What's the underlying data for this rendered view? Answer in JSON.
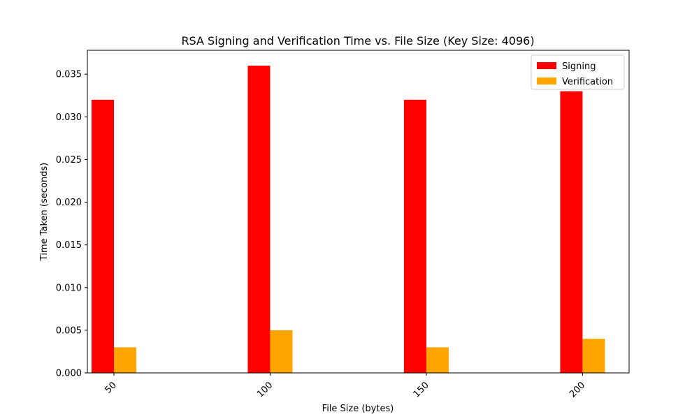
{
  "chart_data": {
    "type": "bar",
    "title": "RSA Signing and Verification Time vs. File Size (Key Size: 4096)",
    "xlabel": "File Size (bytes)",
    "ylabel": "Time Taken (seconds)",
    "categories": [
      "50",
      "100",
      "150",
      "200"
    ],
    "x": [
      50,
      100,
      150,
      200
    ],
    "series": [
      {
        "name": "Signing",
        "color": "#ff0000",
        "values": [
          0.032,
          0.036,
          0.032,
          0.033
        ]
      },
      {
        "name": "Verification",
        "color": "#ffa500",
        "values": [
          0.003,
          0.005,
          0.003,
          0.004
        ]
      }
    ],
    "ylim": [
      0,
      0.0378
    ],
    "yticks": [
      "0.000",
      "0.005",
      "0.010",
      "0.015",
      "0.020",
      "0.025",
      "0.030",
      "0.035"
    ],
    "ytick_values": [
      0,
      0.005,
      0.01,
      0.015,
      0.02,
      0.025,
      0.03,
      0.035
    ],
    "xtick_rotation": 45,
    "grid": false,
    "legend": "top-right"
  }
}
